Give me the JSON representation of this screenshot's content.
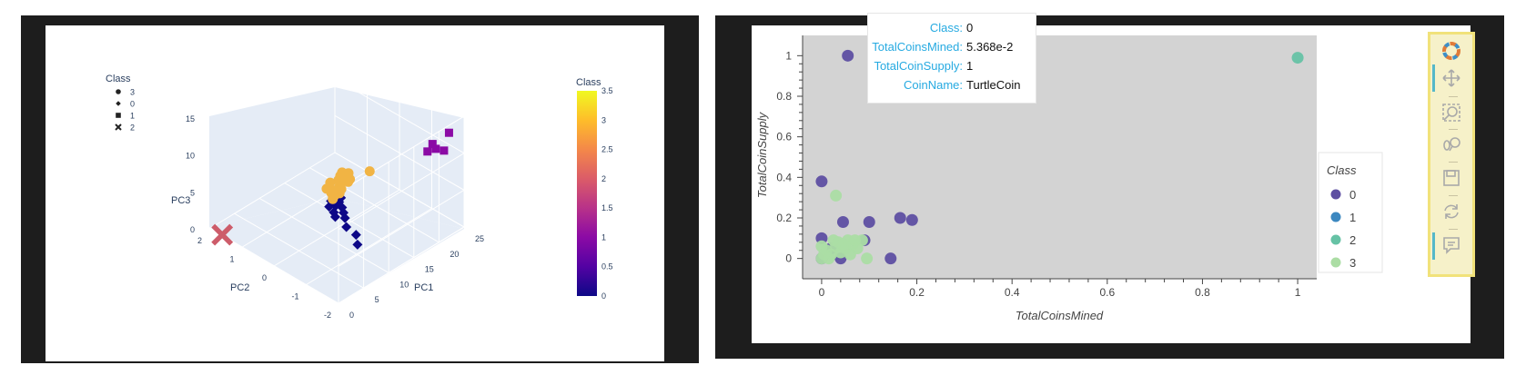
{
  "chart_data": [
    {
      "type": "scatter3d",
      "axes": {
        "PC1": {
          "label": "PC1",
          "ticks": [
            "0",
            "5",
            "10",
            "15",
            "20",
            "25"
          ],
          "range": [
            0,
            25
          ]
        },
        "PC2": {
          "label": "PC2",
          "ticks": [
            "-2",
            "-1",
            "0",
            "1",
            "2"
          ],
          "range": [
            -2,
            2
          ]
        },
        "PC3": {
          "label": "PC3",
          "ticks": [
            "0",
            "5",
            "10",
            "15"
          ],
          "range": [
            0,
            15
          ]
        }
      },
      "legend": {
        "title": "Class",
        "placement": "top-left",
        "entries": [
          {
            "label": "3",
            "symbol": "circle"
          },
          {
            "label": "0",
            "symbol": "diamond"
          },
          {
            "label": "1",
            "symbol": "square"
          },
          {
            "label": "2",
            "symbol": "x"
          }
        ]
      },
      "colorbar": {
        "title": "Class",
        "ticks": [
          "0",
          "0.5",
          "1",
          "1.5",
          "2",
          "2.5",
          "3",
          "3.5"
        ],
        "range": [
          0,
          3.5
        ],
        "colors": [
          "#0d0887",
          "#5302a3",
          "#8b0aa5",
          "#b83289",
          "#db5c68",
          "#f48849",
          "#febd2a",
          "#f0f921"
        ]
      },
      "series": [
        {
          "class": 0,
          "symbol": "diamond",
          "color": "#0d0887",
          "points": [
            [
              8,
              -1.0,
              4.5
            ],
            [
              9,
              -0.8,
              4.8
            ],
            [
              10,
              -0.6,
              4.6
            ],
            [
              9,
              -0.5,
              4.2
            ],
            [
              11,
              -0.4,
              4.4
            ],
            [
              10,
              -0.3,
              3.9
            ],
            [
              11,
              -0.2,
              4.1
            ],
            [
              12,
              -0.1,
              3.8
            ],
            [
              11,
              0.0,
              3.5
            ],
            [
              12,
              0.1,
              3.6
            ],
            [
              13,
              0.0,
              3.3
            ],
            [
              8,
              -1.3,
              4.2
            ],
            [
              14,
              0.1,
              3.2
            ],
            [
              7,
              -1.5,
              3.8
            ]
          ]
        },
        {
          "class": 1,
          "symbol": "square",
          "color": "#8b0aa5",
          "points": [
            [
              22,
              -2.0,
              14
            ],
            [
              21,
              -2.0,
              12
            ],
            [
              20,
              -1.9,
              12.4
            ],
            [
              20,
              -1.8,
              12.8
            ],
            [
              19,
              -1.8,
              12.2
            ]
          ]
        },
        {
          "class": 2,
          "symbol": "x",
          "color": "#cd5c6a",
          "points": [
            [
              0,
              1.6,
              0.2
            ]
          ]
        },
        {
          "class": 3,
          "symbol": "circle",
          "color": "#f1b444",
          "points": [
            [
              13,
              0.2,
              3.2
            ],
            [
              14,
              0.3,
              3.0
            ],
            [
              15,
              0.3,
              2.9
            ],
            [
              15,
              0.5,
              2.7
            ],
            [
              16,
              0.5,
              2.6
            ],
            [
              17,
              0.6,
              2.5
            ],
            [
              18,
              0.5,
              2.7
            ],
            [
              19,
              0.6,
              2.4
            ],
            [
              18,
              0.8,
              2.2
            ],
            [
              17,
              0.9,
              2.0
            ],
            [
              19,
              0.9,
              2.1
            ],
            [
              20,
              0.8,
              2.3
            ],
            [
              21,
              0.3,
              3.4
            ],
            [
              16,
              0.4,
              2.8
            ],
            [
              20,
              1.0,
              1.9
            ],
            [
              14,
              0.4,
              3.1
            ],
            [
              15,
              0.7,
              2.5
            ],
            [
              18,
              0.6,
              2.6
            ]
          ]
        }
      ]
    },
    {
      "type": "scatter",
      "xlabel": "TotalCoinsMined",
      "ylabel": "TotalCoinSupply",
      "xlim": [
        -0.04,
        1.04
      ],
      "ylim": [
        -0.1,
        1.1
      ],
      "xticks": [
        "0",
        "0.2",
        "0.4",
        "0.6",
        "0.8",
        "1"
      ],
      "yticks": [
        "0",
        "0.2",
        "0.4",
        "0.6",
        "0.8",
        "1"
      ],
      "grid": false,
      "legend": {
        "title": "Class",
        "placement": "right"
      },
      "series": [
        {
          "name": "0",
          "color": "#5e4fa2",
          "points": [
            [
              0.055,
              1.0
            ],
            [
              0.0,
              0.38
            ],
            [
              0.045,
              0.18
            ],
            [
              0.1,
              0.18
            ],
            [
              0.165,
              0.2
            ],
            [
              0.19,
              0.19
            ],
            [
              0.145,
              0.0
            ],
            [
              0.0,
              0.1
            ],
            [
              0.09,
              0.09
            ],
            [
              0.02,
              0.05
            ],
            [
              0.04,
              0.0
            ],
            [
              0.0,
              0.0
            ]
          ]
        },
        {
          "name": "1",
          "color": "#3c88c0",
          "points": []
        },
        {
          "name": "2",
          "color": "#66c2a5",
          "points": [
            [
              1.0,
              0.99
            ]
          ]
        },
        {
          "name": "3",
          "color": "#abdda4",
          "points": [
            [
              0.03,
              0.31
            ],
            [
              0.0,
              0.06
            ],
            [
              0.01,
              0.04
            ],
            [
              0.02,
              0.02
            ],
            [
              0.03,
              0.06
            ],
            [
              0.035,
              0.08
            ],
            [
              0.04,
              0.03
            ],
            [
              0.05,
              0.05
            ],
            [
              0.055,
              0.09
            ],
            [
              0.06,
              0.02
            ],
            [
              0.065,
              0.07
            ],
            [
              0.075,
              0.05
            ],
            [
              0.095,
              0.0
            ],
            [
              0.085,
              0.09
            ],
            [
              0.0,
              0.0
            ],
            [
              0.015,
              0.0
            ],
            [
              0.025,
              0.09
            ],
            [
              0.045,
              0.07
            ],
            [
              0.07,
              0.09
            ],
            [
              0.005,
              0.02
            ]
          ]
        }
      ],
      "tooltip": [
        {
          "key": "Class:",
          "value": "0"
        },
        {
          "key": "TotalCoinsMined:",
          "value": "5.368e-2"
        },
        {
          "key": "TotalCoinSupply:",
          "value": "1"
        },
        {
          "key": "CoinName:",
          "value": "TurtleCoin"
        }
      ]
    }
  ],
  "toolbar": {
    "tools": [
      {
        "icon": "bokeh-logo-icon",
        "active": false
      },
      {
        "icon": "pan-icon",
        "active": true
      },
      {
        "icon": "box-zoom-icon",
        "active": false
      },
      {
        "icon": "wheel-zoom-icon",
        "active": false
      },
      {
        "icon": "save-icon",
        "active": false
      },
      {
        "icon": "reset-icon",
        "active": false
      },
      {
        "icon": "hover-icon",
        "active": true
      }
    ]
  }
}
